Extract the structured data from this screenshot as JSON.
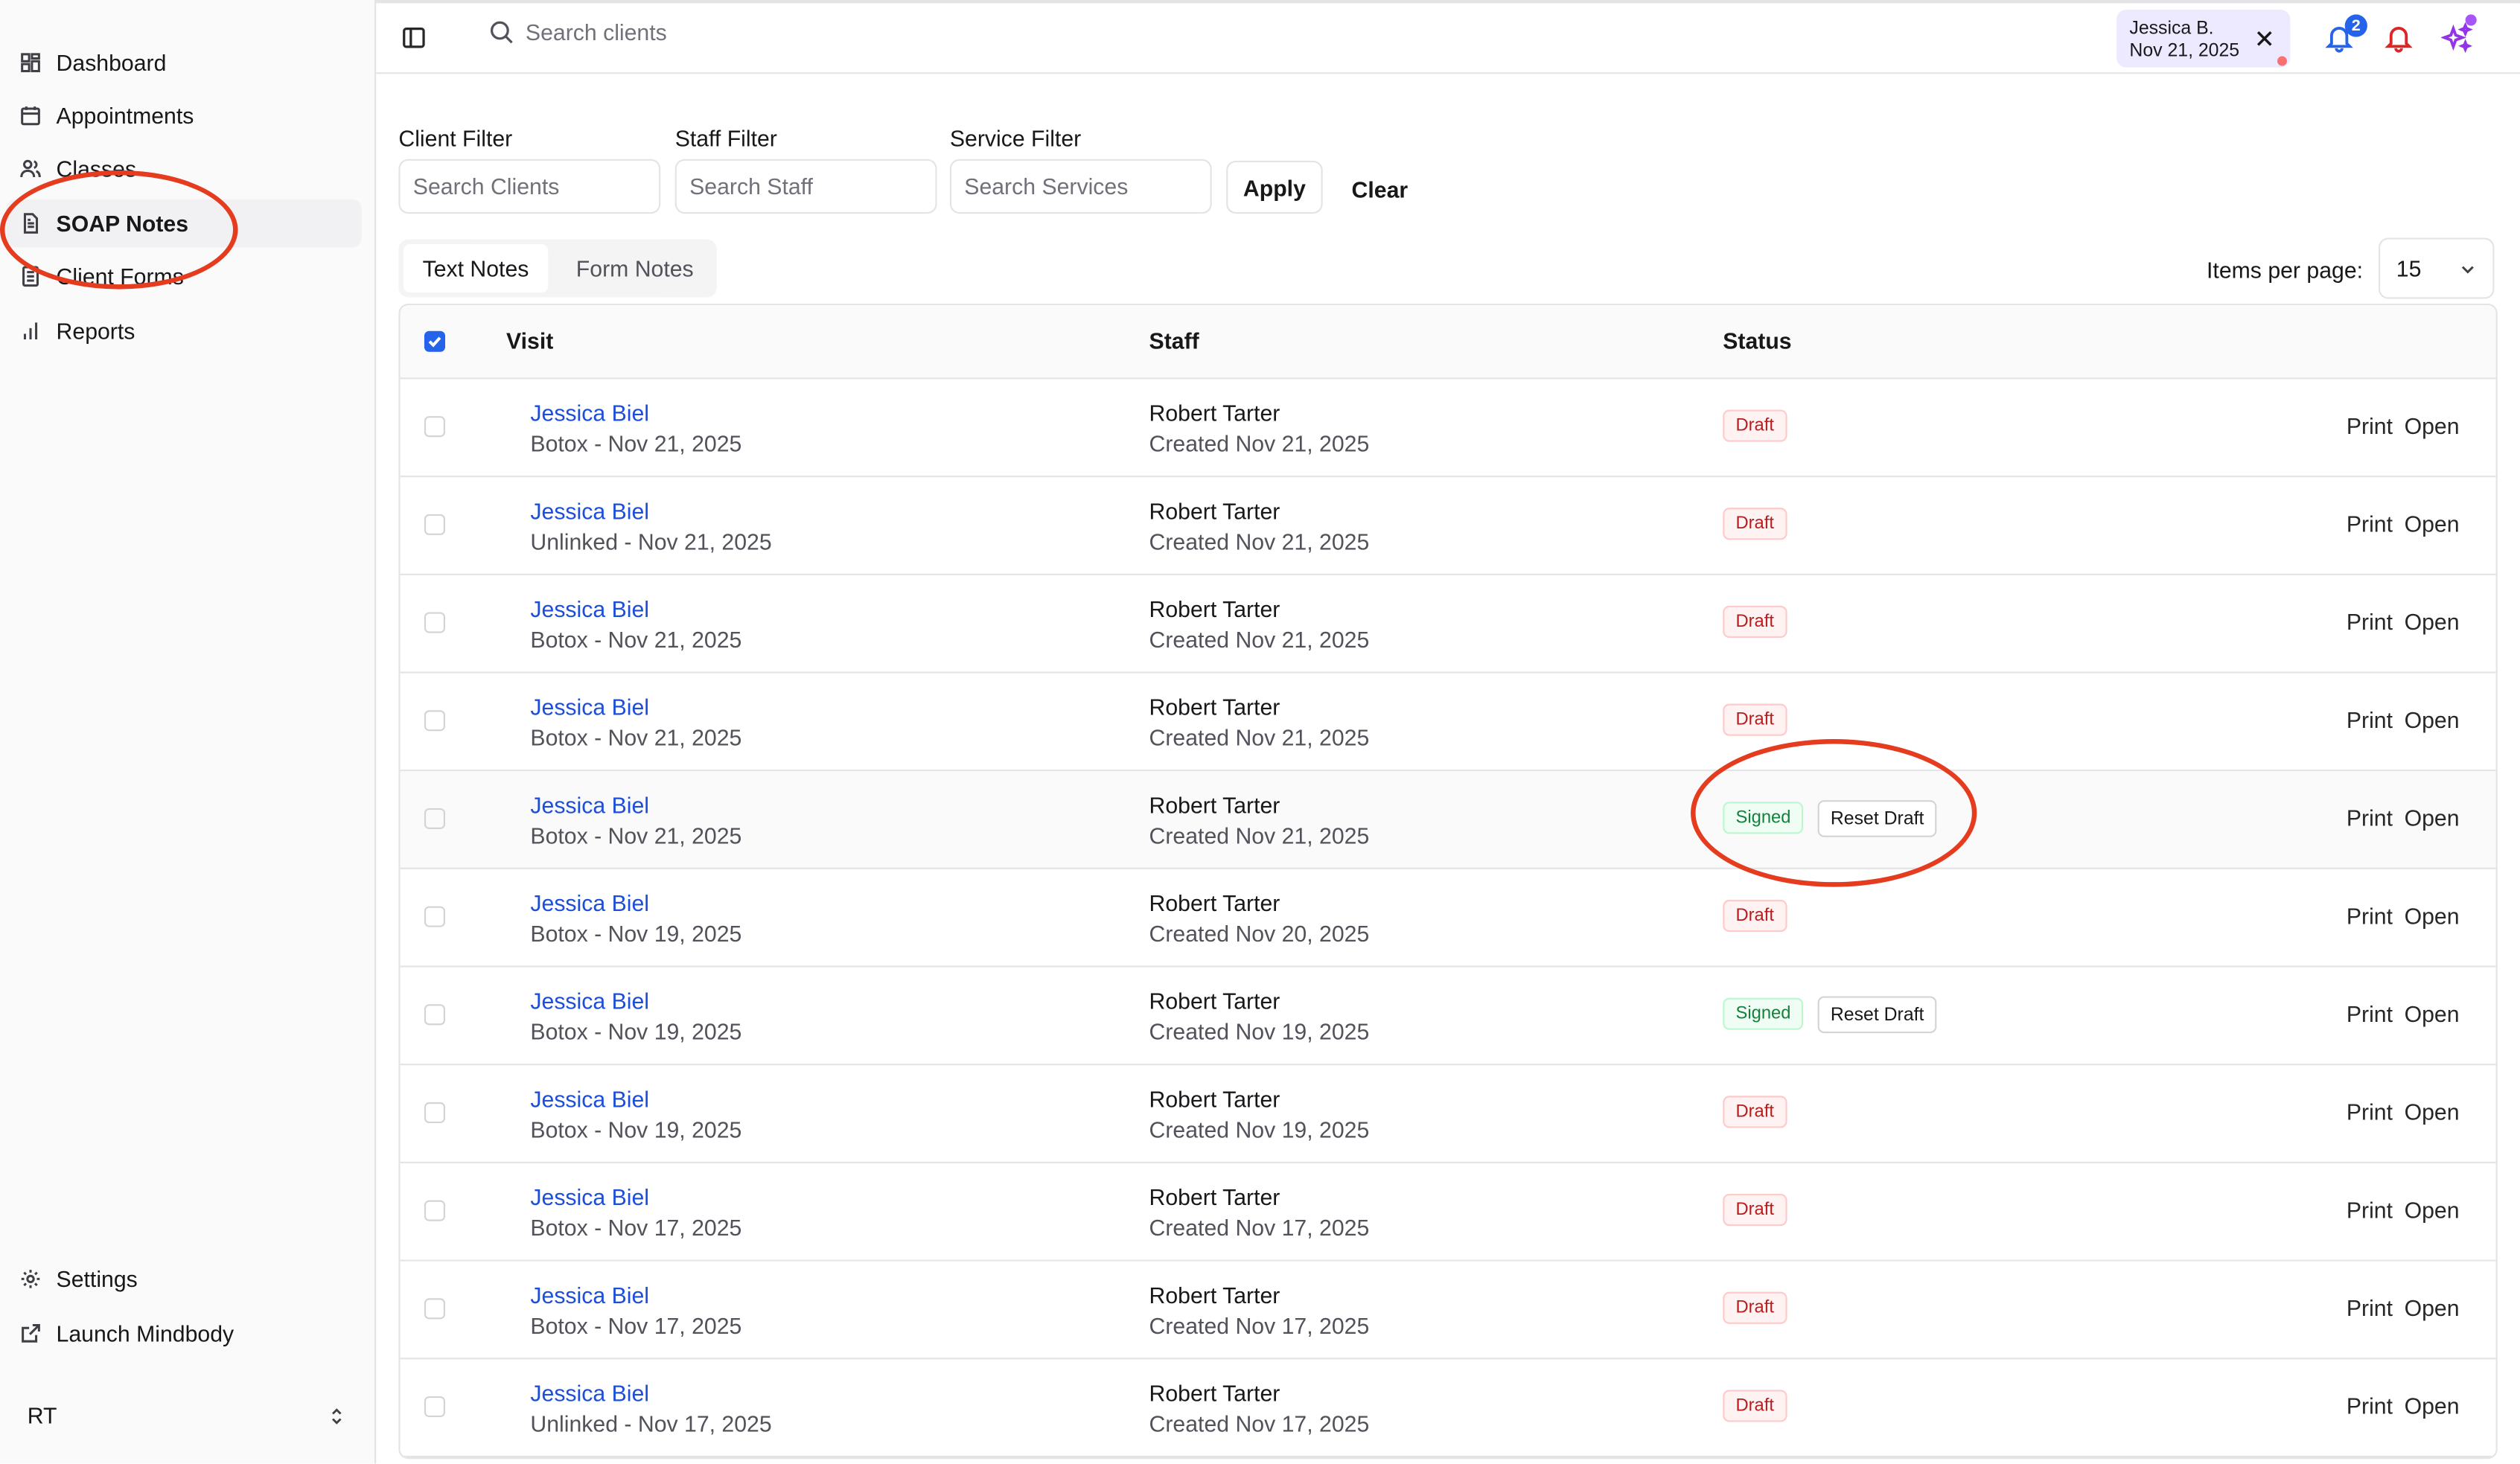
{
  "sidebar": {
    "items": [
      {
        "label": "Dashboard",
        "icon": "dashboard-icon"
      },
      {
        "label": "Appointments",
        "icon": "calendar-icon"
      },
      {
        "label": "Classes",
        "icon": "users-icon"
      },
      {
        "label": "SOAP Notes",
        "icon": "document-icon"
      },
      {
        "label": "Client Forms",
        "icon": "form-icon"
      },
      {
        "label": "Reports",
        "icon": "bar-chart-icon"
      }
    ],
    "bottom_items": [
      {
        "label": "Settings",
        "icon": "gear-icon"
      },
      {
        "label": "Launch Mindbody",
        "icon": "external-link-icon"
      }
    ],
    "user_initials": "RT"
  },
  "topbar": {
    "search_placeholder": "Search clients",
    "client_chip": {
      "name": "Jessica B.",
      "date": "Nov 21, 2025"
    },
    "notification_count": "2"
  },
  "filters": {
    "client_label": "Client Filter",
    "client_placeholder": "Search Clients",
    "staff_label": "Staff Filter",
    "staff_placeholder": "Search Staff",
    "service_label": "Service Filter",
    "service_placeholder": "Search Services",
    "apply_label": "Apply",
    "clear_label": "Clear"
  },
  "tabs": [
    {
      "label": "Text Notes"
    },
    {
      "label": "Form Notes"
    }
  ],
  "pagination": {
    "items_per_page_label": "Items per page:",
    "items_per_page_value": "15"
  },
  "table": {
    "headers": {
      "visit": "Visit",
      "staff": "Staff",
      "status": "Status"
    },
    "print_label": "Print",
    "open_label": "Open",
    "reset_label": "Reset Draft",
    "rows": [
      {
        "client": "Jessica Biel",
        "visit": "Botox - Nov 21, 2025",
        "staff": "Robert Tarter",
        "created": "Created Nov 21, 2025",
        "status": "Draft"
      },
      {
        "client": "Jessica Biel",
        "visit": "Unlinked - Nov 21, 2025",
        "staff": "Robert Tarter",
        "created": "Created Nov 21, 2025",
        "status": "Draft"
      },
      {
        "client": "Jessica Biel",
        "visit": "Botox - Nov 21, 2025",
        "staff": "Robert Tarter",
        "created": "Created Nov 21, 2025",
        "status": "Draft"
      },
      {
        "client": "Jessica Biel",
        "visit": "Botox - Nov 21, 2025",
        "staff": "Robert Tarter",
        "created": "Created Nov 21, 2025",
        "status": "Draft"
      },
      {
        "client": "Jessica Biel",
        "visit": "Botox - Nov 21, 2025",
        "staff": "Robert Tarter",
        "created": "Created Nov 21, 2025",
        "status": "Signed"
      },
      {
        "client": "Jessica Biel",
        "visit": "Botox - Nov 19, 2025",
        "staff": "Robert Tarter",
        "created": "Created Nov 20, 2025",
        "status": "Draft"
      },
      {
        "client": "Jessica Biel",
        "visit": "Botox - Nov 19, 2025",
        "staff": "Robert Tarter",
        "created": "Created Nov 19, 2025",
        "status": "Signed"
      },
      {
        "client": "Jessica Biel",
        "visit": "Botox - Nov 19, 2025",
        "staff": "Robert Tarter",
        "created": "Created Nov 19, 2025",
        "status": "Draft"
      },
      {
        "client": "Jessica Biel",
        "visit": "Botox - Nov 17, 2025",
        "staff": "Robert Tarter",
        "created": "Created Nov 17, 2025",
        "status": "Draft"
      },
      {
        "client": "Jessica Biel",
        "visit": "Botox - Nov 17, 2025",
        "staff": "Robert Tarter",
        "created": "Created Nov 17, 2025",
        "status": "Draft"
      },
      {
        "client": "Jessica Biel",
        "visit": "Unlinked - Nov 17, 2025",
        "staff": "Robert Tarter",
        "created": "Created Nov 17, 2025",
        "status": "Draft"
      }
    ]
  },
  "colors": {
    "annotation": "#e53b1f",
    "link": "#1d4ed8",
    "accent": "#2563eb"
  }
}
